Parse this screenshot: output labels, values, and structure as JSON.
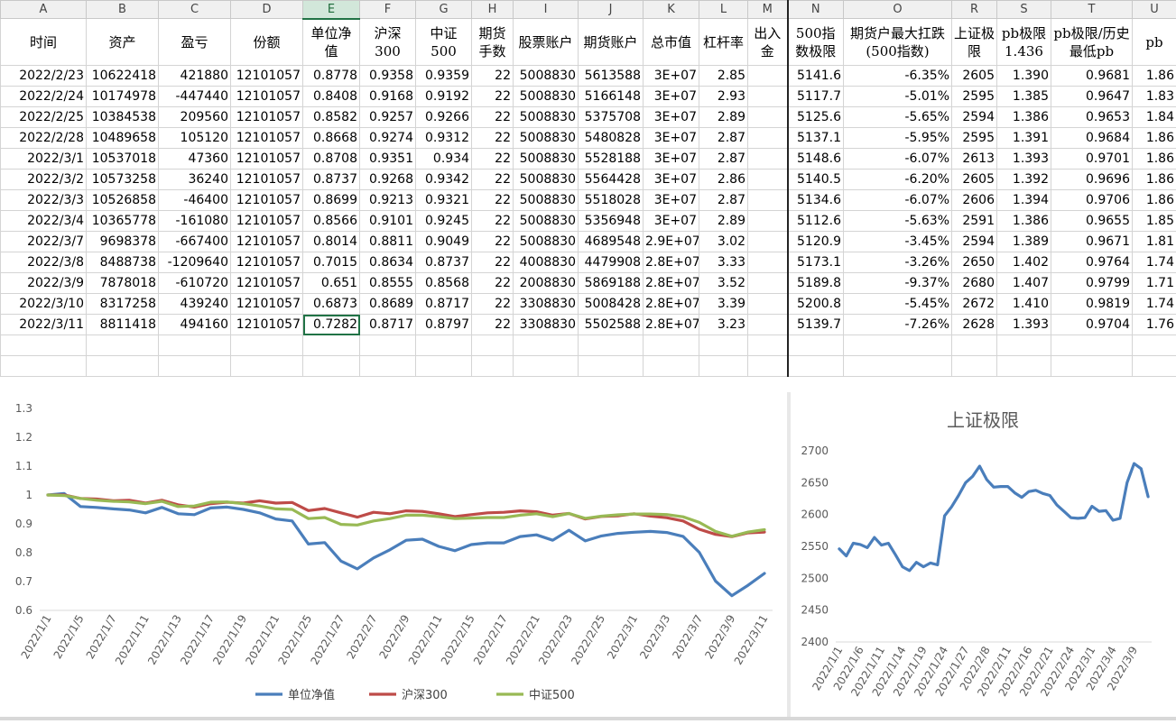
{
  "columns": [
    "A",
    "B",
    "C",
    "D",
    "E",
    "F",
    "G",
    "H",
    "I",
    "J",
    "K",
    "L",
    "M",
    "N",
    "O",
    "R",
    "S",
    "T",
    "U"
  ],
  "headers": [
    "时间",
    "资产",
    "盈亏",
    "份额",
    "单位净值",
    "沪深300",
    "中证500",
    "期货手数",
    "股票账户",
    "期货账户",
    "总市值",
    "杠杆率",
    "出入金",
    "500指数极限",
    "期货户最大扛跌(500指数)",
    "上证极限",
    "pb极限 1.436",
    "pb极限/历史最低pb",
    "pb"
  ],
  "rows": [
    [
      "2022/2/23",
      "10622418",
      "421880",
      "12101057",
      "0.8778",
      "0.9358",
      "0.9359",
      "22",
      "5008830",
      "5613588",
      "3E+07",
      "2.85",
      "",
      "5141.6",
      "-6.35%",
      "2605",
      "1.390",
      "0.9681",
      "1.86"
    ],
    [
      "2022/2/24",
      "10174978",
      "-447440",
      "12101057",
      "0.8408",
      "0.9168",
      "0.9192",
      "22",
      "5008830",
      "5166148",
      "3E+07",
      "2.93",
      "",
      "5117.7",
      "-5.01%",
      "2595",
      "1.385",
      "0.9647",
      "1.83"
    ],
    [
      "2022/2/25",
      "10384538",
      "209560",
      "12101057",
      "0.8582",
      "0.9257",
      "0.9266",
      "22",
      "5008830",
      "5375708",
      "3E+07",
      "2.89",
      "",
      "5125.6",
      "-5.65%",
      "2594",
      "1.386",
      "0.9653",
      "1.84"
    ],
    [
      "2022/2/28",
      "10489658",
      "105120",
      "12101057",
      "0.8668",
      "0.9274",
      "0.9312",
      "22",
      "5008830",
      "5480828",
      "3E+07",
      "2.87",
      "",
      "5137.1",
      "-5.95%",
      "2595",
      "1.391",
      "0.9684",
      "1.86"
    ],
    [
      "2022/3/1",
      "10537018",
      "47360",
      "12101057",
      "0.8708",
      "0.9351",
      "0.934",
      "22",
      "5008830",
      "5528188",
      "3E+07",
      "2.87",
      "",
      "5148.6",
      "-6.07%",
      "2613",
      "1.393",
      "0.9701",
      "1.86"
    ],
    [
      "2022/3/2",
      "10573258",
      "36240",
      "12101057",
      "0.8737",
      "0.9268",
      "0.9342",
      "22",
      "5008830",
      "5564428",
      "3E+07",
      "2.86",
      "",
      "5140.5",
      "-6.20%",
      "2605",
      "1.392",
      "0.9696",
      "1.86"
    ],
    [
      "2022/3/3",
      "10526858",
      "-46400",
      "12101057",
      "0.8699",
      "0.9213",
      "0.9321",
      "22",
      "5008830",
      "5518028",
      "3E+07",
      "2.87",
      "",
      "5134.6",
      "-6.07%",
      "2606",
      "1.394",
      "0.9706",
      "1.86"
    ],
    [
      "2022/3/4",
      "10365778",
      "-161080",
      "12101057",
      "0.8566",
      "0.9101",
      "0.9245",
      "22",
      "5008830",
      "5356948",
      "3E+07",
      "2.89",
      "",
      "5112.6",
      "-5.63%",
      "2591",
      "1.386",
      "0.9655",
      "1.85"
    ],
    [
      "2022/3/7",
      "9698378",
      "-667400",
      "12101057",
      "0.8014",
      "0.8811",
      "0.9049",
      "22",
      "5008830",
      "4689548",
      "2.9E+07",
      "3.02",
      "",
      "5120.9",
      "-3.45%",
      "2594",
      "1.389",
      "0.9671",
      "1.81"
    ],
    [
      "2022/3/8",
      "8488738",
      "-1209640",
      "12101057",
      "0.7015",
      "0.8634",
      "0.8737",
      "22",
      "4008830",
      "4479908",
      "2.8E+07",
      "3.33",
      "",
      "5173.1",
      "-3.26%",
      "2650",
      "1.402",
      "0.9764",
      "1.74"
    ],
    [
      "2022/3/9",
      "7878018",
      "-610720",
      "12101057",
      "0.651",
      "0.8555",
      "0.8568",
      "22",
      "2008830",
      "5869188",
      "2.8E+07",
      "3.52",
      "",
      "5189.8",
      "-9.37%",
      "2680",
      "1.407",
      "0.9799",
      "1.71"
    ],
    [
      "2022/3/10",
      "8317258",
      "439240",
      "12101057",
      "0.6873",
      "0.8689",
      "0.8717",
      "22",
      "3308830",
      "5008428",
      "2.8E+07",
      "3.39",
      "",
      "5200.8",
      "-5.45%",
      "2672",
      "1.410",
      "0.9819",
      "1.74"
    ],
    [
      "2022/3/11",
      "8811418",
      "494160",
      "12101057",
      "0.7282",
      "0.8717",
      "0.8797",
      "22",
      "3308830",
      "5502588",
      "2.8E+07",
      "3.23",
      "",
      "5139.7",
      "-7.26%",
      "2628",
      "1.393",
      "0.9704",
      "1.76"
    ]
  ],
  "accent_red": "#e0201b",
  "chart_data": [
    {
      "type": "line",
      "title": "",
      "categories": [
        "2022/1/1",
        "2022/1/4",
        "2022/1/5",
        "2022/1/6",
        "2022/1/7",
        "2022/1/10",
        "2022/1/11",
        "2022/1/12",
        "2022/1/13",
        "2022/1/14",
        "2022/1/17",
        "2022/1/18",
        "2022/1/19",
        "2022/1/20",
        "2022/1/21",
        "2022/1/24",
        "2022/1/25",
        "2022/1/26",
        "2022/1/27",
        "2022/1/28",
        "2022/2/7",
        "2022/2/8",
        "2022/2/9",
        "2022/2/10",
        "2022/2/11",
        "2022/2/14",
        "2022/2/15",
        "2022/2/16",
        "2022/2/17",
        "2022/2/18",
        "2022/2/21",
        "2022/2/22",
        "2022/2/23",
        "2022/2/24",
        "2022/2/25",
        "2022/2/28",
        "2022/3/1",
        "2022/3/2",
        "2022/3/3",
        "2022/3/4",
        "2022/3/7",
        "2022/3/8",
        "2022/3/9",
        "2022/3/10",
        "2022/3/11"
      ],
      "xtick_labels": [
        "2022/1/1",
        "2022/1/5",
        "2022/1/7",
        "2022/1/11",
        "2022/1/13",
        "2022/1/17",
        "2022/1/19",
        "2022/1/21",
        "2022/1/25",
        "2022/1/27",
        "2022/2/7",
        "2022/2/9",
        "2022/2/11",
        "2022/2/15",
        "2022/2/17",
        "2022/2/21",
        "2022/2/23",
        "2022/2/25",
        "2022/3/1",
        "2022/3/3",
        "2022/3/7",
        "2022/3/9",
        "2022/3/11"
      ],
      "ylim": [
        0.6,
        1.3
      ],
      "yticks": [
        "0.6",
        "0.7",
        "0.8",
        "0.9",
        "1",
        "1.1",
        "1.2",
        "1.3"
      ],
      "legend_position": "bottom",
      "series": [
        {
          "name": "单位净值",
          "color": "#4a7ebb",
          "values": [
            1,
            1.005,
            0.96,
            0.957,
            0.952,
            0.948,
            0.938,
            0.957,
            0.935,
            0.932,
            0.955,
            0.958,
            0.95,
            0.938,
            0.917,
            0.91,
            0.83,
            0.835,
            0.771,
            0.744,
            0.782,
            0.81,
            0.843,
            0.847,
            0.822,
            0.807,
            0.828,
            0.834,
            0.834,
            0.856,
            0.862,
            0.843,
            0.8778,
            0.8408,
            0.8582,
            0.8668,
            0.8708,
            0.8737,
            0.8699,
            0.8566,
            0.8014,
            0.7015,
            0.651,
            0.6873,
            0.7282
          ]
        },
        {
          "name": "沪深300",
          "color": "#be4b48",
          "values": [
            1,
            1,
            0.988,
            0.986,
            0.98,
            0.982,
            0.972,
            0.982,
            0.966,
            0.958,
            0.97,
            0.975,
            0.972,
            0.98,
            0.972,
            0.974,
            0.946,
            0.953,
            0.938,
            0.923,
            0.94,
            0.935,
            0.945,
            0.943,
            0.935,
            0.925,
            0.932,
            0.938,
            0.94,
            0.945,
            0.942,
            0.93,
            0.9358,
            0.9168,
            0.9257,
            0.9274,
            0.9351,
            0.9268,
            0.9213,
            0.9101,
            0.8811,
            0.8634,
            0.8555,
            0.8689,
            0.8717
          ]
        },
        {
          "name": "中证500",
          "color": "#98b954",
          "values": [
            1,
            0.998,
            0.988,
            0.982,
            0.978,
            0.976,
            0.97,
            0.978,
            0.96,
            0.962,
            0.975,
            0.976,
            0.97,
            0.962,
            0.952,
            0.95,
            0.918,
            0.922,
            0.898,
            0.896,
            0.91,
            0.918,
            0.93,
            0.93,
            0.925,
            0.918,
            0.92,
            0.922,
            0.922,
            0.93,
            0.935,
            0.925,
            0.9359,
            0.9192,
            0.9266,
            0.9312,
            0.934,
            0.9342,
            0.9321,
            0.9245,
            0.9049,
            0.8737,
            0.8568,
            0.8717,
            0.8797
          ]
        }
      ]
    },
    {
      "type": "line",
      "title": "上证极限",
      "categories": [
        "2022/1/1",
        "2022/1/4",
        "2022/1/5",
        "2022/1/6",
        "2022/1/7",
        "2022/1/10",
        "2022/1/11",
        "2022/1/12",
        "2022/1/13",
        "2022/1/14",
        "2022/1/17",
        "2022/1/18",
        "2022/1/19",
        "2022/1/20",
        "2022/1/21",
        "2022/1/24",
        "2022/1/25",
        "2022/1/26",
        "2022/1/27",
        "2022/1/28",
        "2022/2/7",
        "2022/2/8",
        "2022/2/9",
        "2022/2/10",
        "2022/2/11",
        "2022/2/14",
        "2022/2/15",
        "2022/2/16",
        "2022/2/17",
        "2022/2/18",
        "2022/2/21",
        "2022/2/22",
        "2022/2/23",
        "2022/2/24",
        "2022/2/25",
        "2022/2/28",
        "2022/3/1",
        "2022/3/2",
        "2022/3/3",
        "2022/3/4",
        "2022/3/7",
        "2022/3/8",
        "2022/3/9",
        "2022/3/10",
        "2022/3/11"
      ],
      "xtick_labels": [
        "2022/1/1",
        "2022/1/6",
        "2022/1/11",
        "2022/1/14",
        "2022/1/19",
        "2022/1/24",
        "2022/1/27",
        "2022/2/8",
        "2022/2/11",
        "2022/2/16",
        "2022/2/21",
        "2022/2/24",
        "2022/3/1",
        "2022/3/4",
        "2022/3/9"
      ],
      "ylim": [
        2400,
        2700
      ],
      "yticks": [
        "2400",
        "2450",
        "2500",
        "2550",
        "2600",
        "2650",
        "2700"
      ],
      "series": [
        {
          "name": "",
          "color": "#4a7ebb",
          "values": [
            2546,
            2535,
            2555,
            2553,
            2548,
            2564,
            2552,
            2555,
            2537,
            2518,
            2512,
            2525,
            2518,
            2524,
            2521,
            2598,
            2612,
            2630,
            2650,
            2660,
            2676,
            2655,
            2643,
            2644,
            2644,
            2634,
            2627,
            2636,
            2638,
            2633,
            2630,
            2615,
            2605,
            2595,
            2594,
            2595,
            2613,
            2605,
            2606,
            2591,
            2594,
            2650,
            2680,
            2672,
            2628
          ]
        }
      ]
    }
  ]
}
